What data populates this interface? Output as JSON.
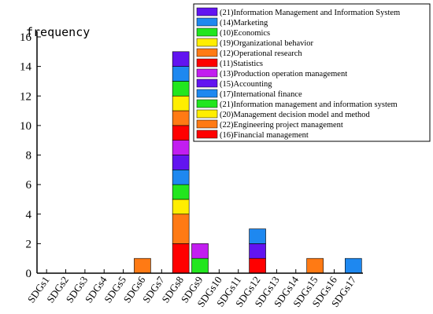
{
  "chart_data": {
    "type": "bar",
    "stacked": true,
    "title": "",
    "ylabel": "frequency",
    "xlabel": "",
    "ylim": [
      0,
      16
    ],
    "yticks": [
      0,
      2,
      4,
      6,
      8,
      10,
      12,
      14,
      16
    ],
    "grid": false,
    "legend_position": "top-right",
    "categories": [
      "SDGs1",
      "SDGs2",
      "SDGs3",
      "SDGs4",
      "SDGs5",
      "SDGs6",
      "SDGs7",
      "SDGs8",
      "SDGs9",
      "SDGs10",
      "SDGs11",
      "SDGs12",
      "SDGs13",
      "SDGs14",
      "SDGs15",
      "SDGs16",
      "SDGs17"
    ],
    "series": [
      {
        "name": "(16)Financial management",
        "color": "#ff0000",
        "values": [
          0,
          0,
          0,
          0,
          0,
          0,
          0,
          2,
          0,
          0,
          0,
          1,
          0,
          0,
          0,
          0,
          0
        ]
      },
      {
        "name": "(22)Engineering project management",
        "color": "#ff7a14",
        "values": [
          0,
          0,
          0,
          0,
          0,
          1,
          0,
          2,
          0,
          0,
          0,
          0,
          0,
          0,
          1,
          0,
          0
        ]
      },
      {
        "name": "(20)Management decision model and method",
        "color": "#ffee00",
        "values": [
          0,
          0,
          0,
          0,
          0,
          0,
          0,
          1,
          0,
          0,
          0,
          0,
          0,
          0,
          0,
          0,
          0
        ]
      },
      {
        "name": "(21)Information management and information system",
        "color": "#22e61e",
        "values": [
          0,
          0,
          0,
          0,
          0,
          0,
          0,
          1,
          1,
          0,
          0,
          0,
          0,
          0,
          0,
          0,
          0
        ]
      },
      {
        "name": "(17)International finance",
        "color": "#1e88f0",
        "values": [
          0,
          0,
          0,
          0,
          0,
          0,
          0,
          1,
          0,
          0,
          0,
          0,
          0,
          0,
          0,
          0,
          1
        ]
      },
      {
        "name": "(15)Accounting",
        "color": "#6214f0",
        "values": [
          0,
          0,
          0,
          0,
          0,
          0,
          0,
          1,
          0,
          0,
          0,
          1,
          0,
          0,
          0,
          0,
          0
        ]
      },
      {
        "name": "(13)Production operation management",
        "color": "#c21ef0",
        "values": [
          0,
          0,
          0,
          0,
          0,
          0,
          0,
          1,
          1,
          0,
          0,
          0,
          0,
          0,
          0,
          0,
          0
        ]
      },
      {
        "name": "(11)Statistics",
        "color": "#ff0000",
        "values": [
          0,
          0,
          0,
          0,
          0,
          0,
          0,
          1,
          0,
          0,
          0,
          0,
          0,
          0,
          0,
          0,
          0
        ]
      },
      {
        "name": "(12)Operational research",
        "color": "#ff7a14",
        "values": [
          0,
          0,
          0,
          0,
          0,
          0,
          0,
          1,
          0,
          0,
          0,
          0,
          0,
          0,
          0,
          0,
          0
        ]
      },
      {
        "name": "(19)Organizational behavior",
        "color": "#ffee00",
        "values": [
          0,
          0,
          0,
          0,
          0,
          0,
          0,
          1,
          0,
          0,
          0,
          0,
          0,
          0,
          0,
          0,
          0
        ]
      },
      {
        "name": "(10)Economics",
        "color": "#22e61e",
        "values": [
          0,
          0,
          0,
          0,
          0,
          0,
          0,
          1,
          0,
          0,
          0,
          0,
          0,
          0,
          0,
          0,
          0
        ]
      },
      {
        "name": "(14)Marketing",
        "color": "#1e88f0",
        "values": [
          0,
          0,
          0,
          0,
          0,
          0,
          0,
          1,
          0,
          0,
          0,
          1,
          0,
          0,
          0,
          0,
          0
        ]
      },
      {
        "name": "(21)Information Management and Information System",
        "color": "#6214f0",
        "values": [
          0,
          0,
          0,
          0,
          0,
          0,
          0,
          1,
          0,
          0,
          0,
          0,
          0,
          0,
          0,
          0,
          0
        ]
      }
    ]
  }
}
